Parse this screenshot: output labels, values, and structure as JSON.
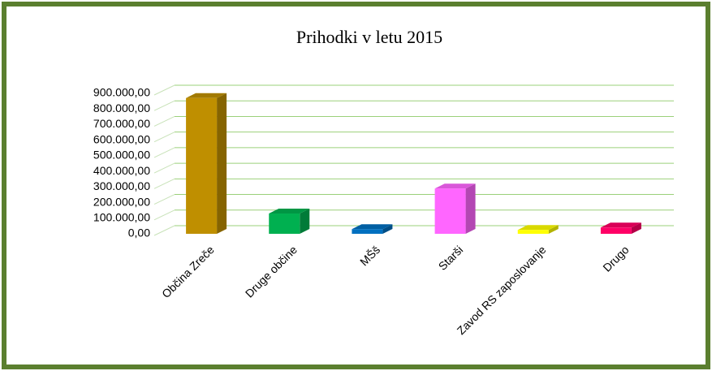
{
  "chart_data": {
    "type": "bar3d",
    "title": "Prihodki v letu 2015",
    "categories": [
      "Občina Zreče",
      "Druge občine",
      "MŠš",
      "Starši",
      "Zavod RS zaposlovanje",
      "Drugo"
    ],
    "values": [
      870000,
      130000,
      30000,
      290000,
      25000,
      40000
    ],
    "colors": [
      "#bf8f00",
      "#00b050",
      "#0070c0",
      "#ff66ff",
      "#ffff00",
      "#ff0066"
    ],
    "ylim": [
      0,
      900000
    ],
    "yticks": [
      {
        "value": 0,
        "label": "0,00"
      },
      {
        "value": 100000,
        "label": "100.000,00"
      },
      {
        "value": 200000,
        "label": "200.000,00"
      },
      {
        "value": 300000,
        "label": "300.000,00"
      },
      {
        "value": 400000,
        "label": "400.000,00"
      },
      {
        "value": 500000,
        "label": "500.000,00"
      },
      {
        "value": 600000,
        "label": "600.000,00"
      },
      {
        "value": 700000,
        "label": "700.000,00"
      },
      {
        "value": 800000,
        "label": "800.000,00"
      },
      {
        "value": 900000,
        "label": "900.000,00"
      }
    ],
    "grid": true
  }
}
